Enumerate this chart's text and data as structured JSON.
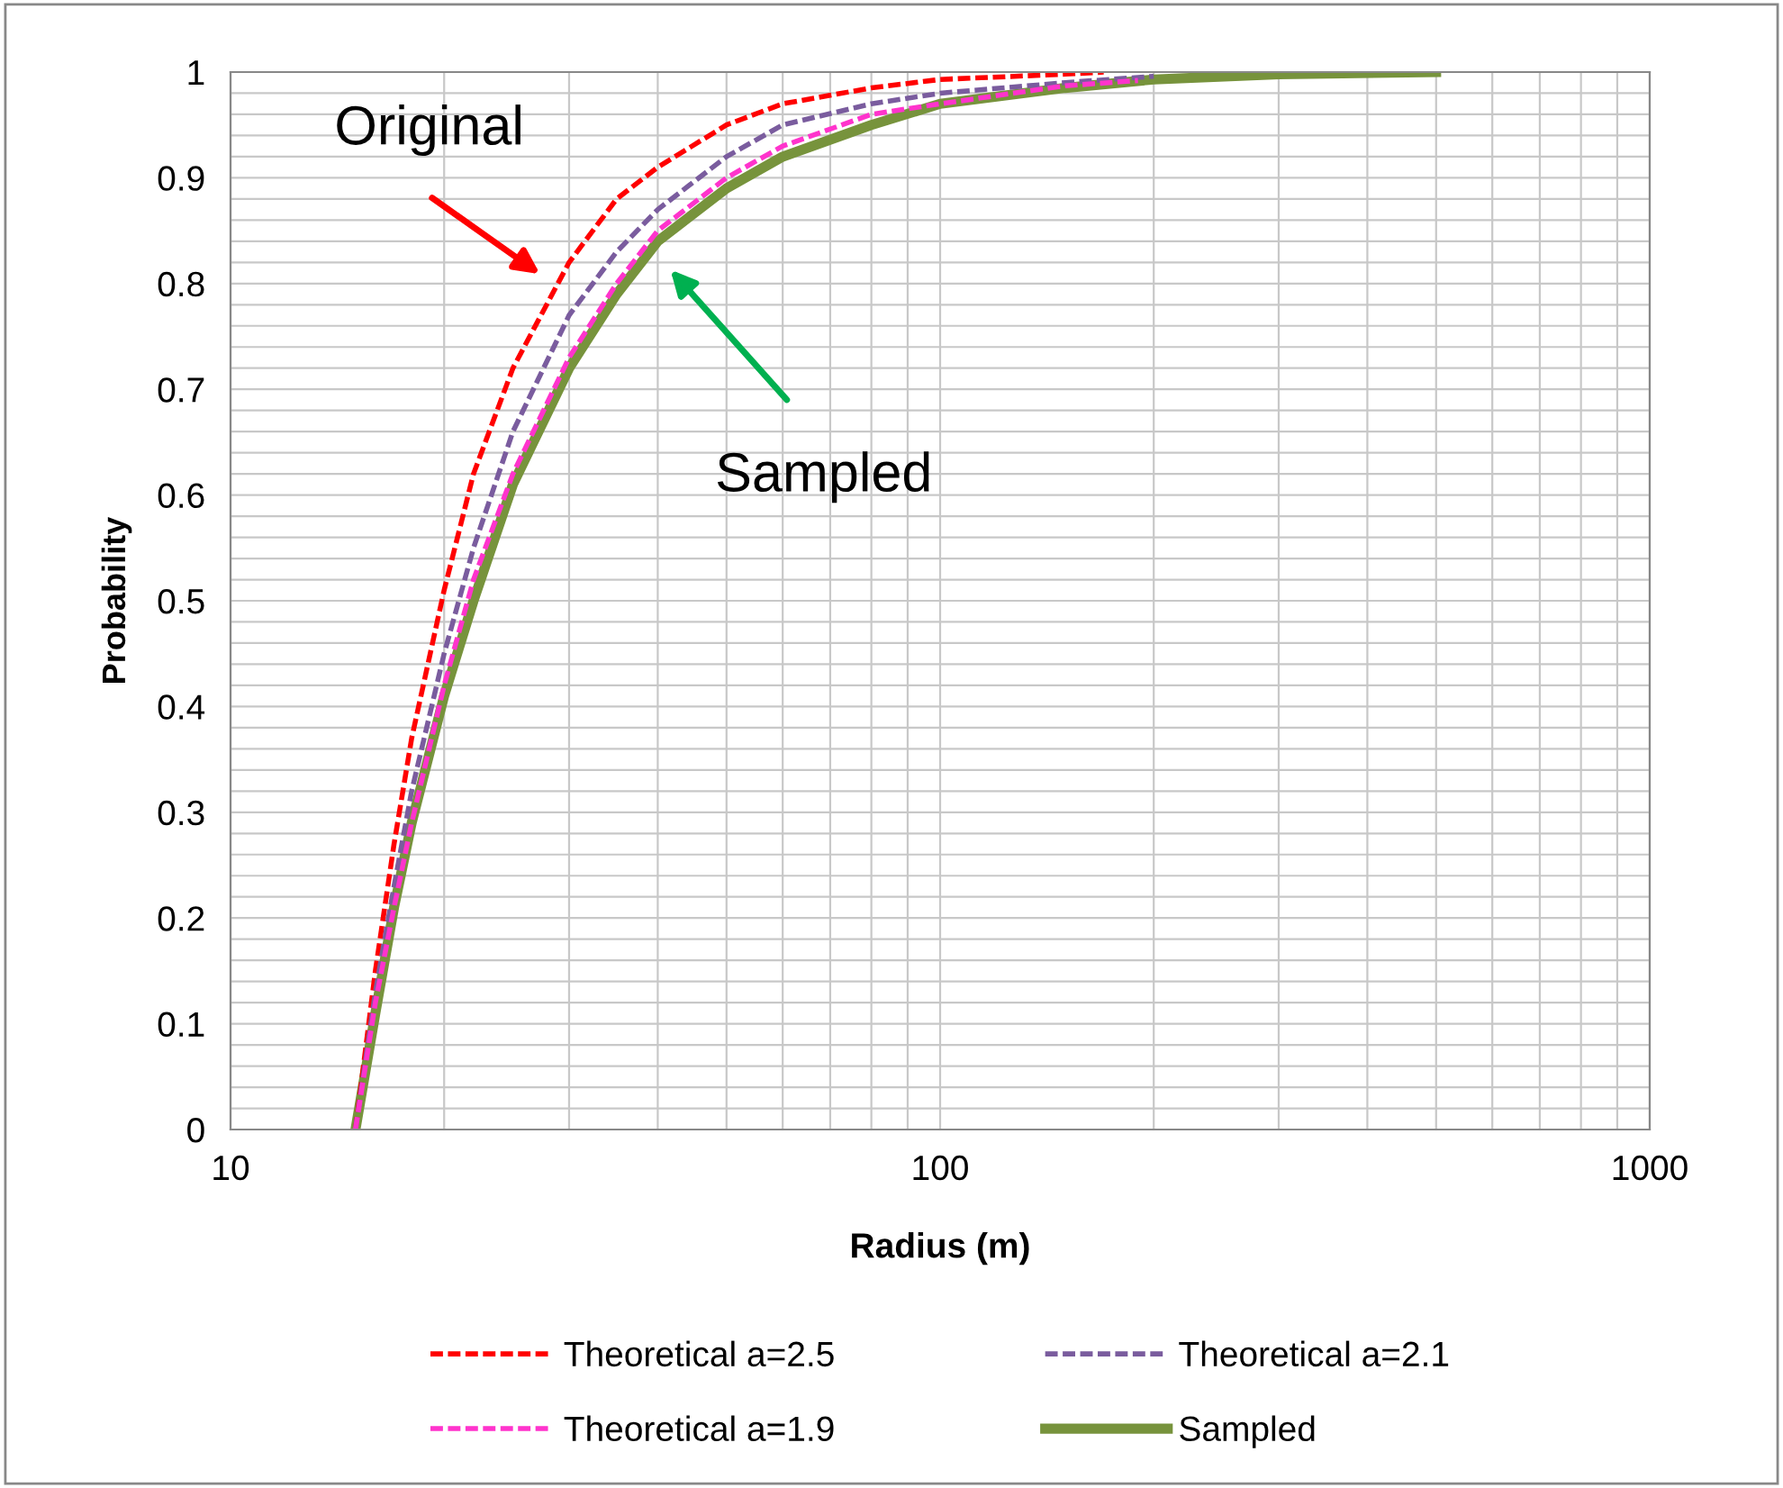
{
  "chart_data": {
    "type": "line",
    "xlabel": "Radius (m)",
    "ylabel": "Probability",
    "log": "x",
    "grid": true,
    "legend": "bottom",
    "xlim": [
      10,
      1000
    ],
    "xticks": [
      10,
      100,
      1000
    ],
    "ylim": [
      0,
      1
    ],
    "yticks": [
      0,
      0.1,
      0.2,
      0.3,
      0.4,
      0.5,
      0.6,
      0.7,
      0.8,
      0.9,
      1
    ],
    "series": [
      {
        "name": "Theoretical a=2.5",
        "color": "#ff0000",
        "line_style": "dashed",
        "x": [
          15,
          16,
          17,
          18,
          20,
          22,
          25,
          30,
          35,
          40,
          50,
          60,
          80,
          100,
          150,
          170
        ],
        "values": [
          0,
          0.15,
          0.27,
          0.37,
          0.51,
          0.62,
          0.72,
          0.82,
          0.88,
          0.91,
          0.95,
          0.97,
          0.985,
          0.993,
          0.998,
          1
        ]
      },
      {
        "name": "Theoretical a=2.1",
        "color": "#7a5c9e",
        "line_style": "dashed",
        "x": [
          15,
          16,
          17,
          18,
          20,
          22,
          25,
          30,
          35,
          40,
          50,
          60,
          80,
          100,
          150,
          200
        ],
        "values": [
          0,
          0.13,
          0.23,
          0.32,
          0.45,
          0.55,
          0.66,
          0.77,
          0.83,
          0.87,
          0.92,
          0.95,
          0.97,
          0.98,
          0.99,
          0.996
        ]
      },
      {
        "name": "Theoretical a=1.9",
        "color": "#ff33cc",
        "line_style": "dashed",
        "x": [
          15,
          16,
          17,
          18,
          20,
          22,
          25,
          30,
          35,
          40,
          50,
          60,
          80,
          100,
          150,
          190
        ],
        "values": [
          0,
          0.12,
          0.21,
          0.29,
          0.42,
          0.52,
          0.62,
          0.73,
          0.8,
          0.85,
          0.9,
          0.93,
          0.96,
          0.97,
          0.987,
          0.992
        ]
      },
      {
        "name": "Sampled",
        "color": "#77933c",
        "line_style": "solid",
        "x": [
          15,
          16,
          17,
          18,
          20,
          22,
          25,
          30,
          35,
          40,
          50,
          60,
          80,
          100,
          150,
          200,
          300,
          500
        ],
        "values": [
          0,
          0.11,
          0.21,
          0.29,
          0.41,
          0.5,
          0.61,
          0.72,
          0.79,
          0.84,
          0.89,
          0.92,
          0.95,
          0.97,
          0.985,
          0.993,
          0.998,
          1
        ]
      }
    ],
    "annotations": [
      "Original",
      "Sampled"
    ]
  }
}
